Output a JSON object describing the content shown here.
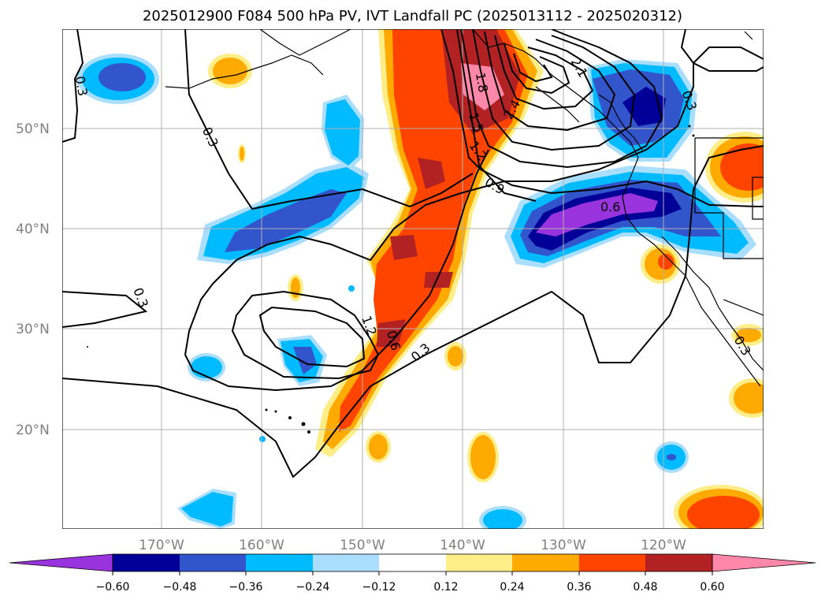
{
  "title": "2025012900 F084 500 hPa PV, IVT Landfall PC (2025013112 - 2025020312)",
  "colors": {
    "grid": "#b0b0b0",
    "contour": "#000000",
    "tick": "#808080",
    "levels": [
      "#9933dd",
      "#000099",
      "#3355cc",
      "#00bbff",
      "#aadeff",
      "#ffffff",
      "#ffee88",
      "#ffaa00",
      "#ff4400",
      "#b22222",
      "#ff88aa"
    ]
  },
  "map": {
    "lat_ticks": [
      "20°N",
      "30°N",
      "40°N",
      "50°N"
    ],
    "lon_ticks": [
      "170°W",
      "160°W",
      "150°W",
      "140°W",
      "130°W",
      "120°W"
    ]
  },
  "colorbar": {
    "ticks": [
      "−0.60",
      "−0.48",
      "−0.36",
      "−0.24",
      "−0.12",
      "0.12",
      "0.24",
      "0.36",
      "0.48",
      "0.60"
    ]
  },
  "contour_labels": [
    "0.3",
    "0.3",
    "0.3",
    "0.3",
    "0.3",
    "0.6",
    "0.6",
    "0.9",
    "1.2",
    "1.2",
    "1.5",
    "1.8",
    "2.1",
    "2.4",
    "0.3"
  ]
}
